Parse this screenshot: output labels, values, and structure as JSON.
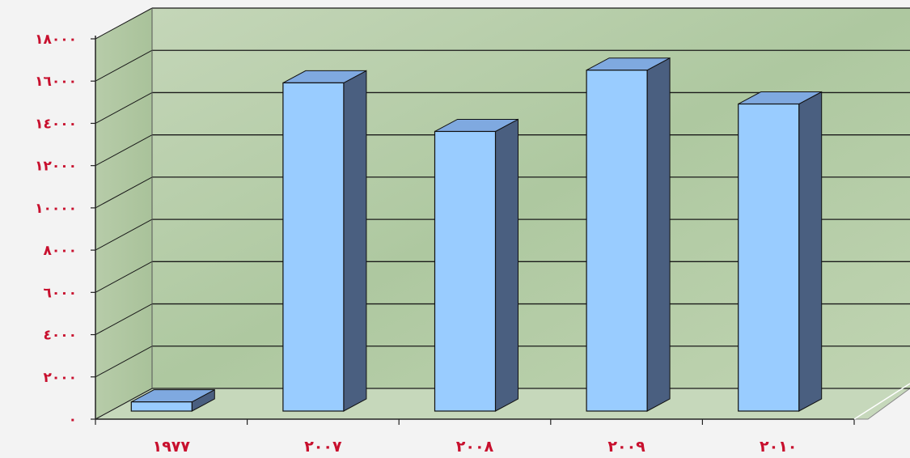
{
  "chart_data": {
    "type": "bar",
    "style": "3d-column",
    "categories": [
      "١٩٧٧",
      "٢٠٠٧",
      "٢٠٠٨",
      "٢٠٠٩",
      "٢٠١٠"
    ],
    "values": [
      1200,
      16300,
      14000,
      16900,
      15300
    ],
    "yticks": [
      0,
      2000,
      4000,
      6000,
      8000,
      10000,
      12000,
      14000,
      16000,
      18000
    ],
    "ytick_labels": [
      "٠",
      "٢٠٠٠",
      "٤٠٠٠",
      "٦٠٠٠",
      "٨٠٠٠",
      "١٠٠٠٠",
      "١٢٠٠٠",
      "١٤٠٠٠",
      "١٦٠٠٠",
      "١٨٠٠٠"
    ],
    "ylim": [
      0,
      18000
    ],
    "grid": true,
    "title": "",
    "xlabel": "",
    "ylabel": "",
    "colors": {
      "bar_front": "#99ccff",
      "bar_side": "#4a5f80",
      "bar_top": "#7fa9e0",
      "labels": "#c8102e",
      "wall": "#b9cfad"
    }
  }
}
